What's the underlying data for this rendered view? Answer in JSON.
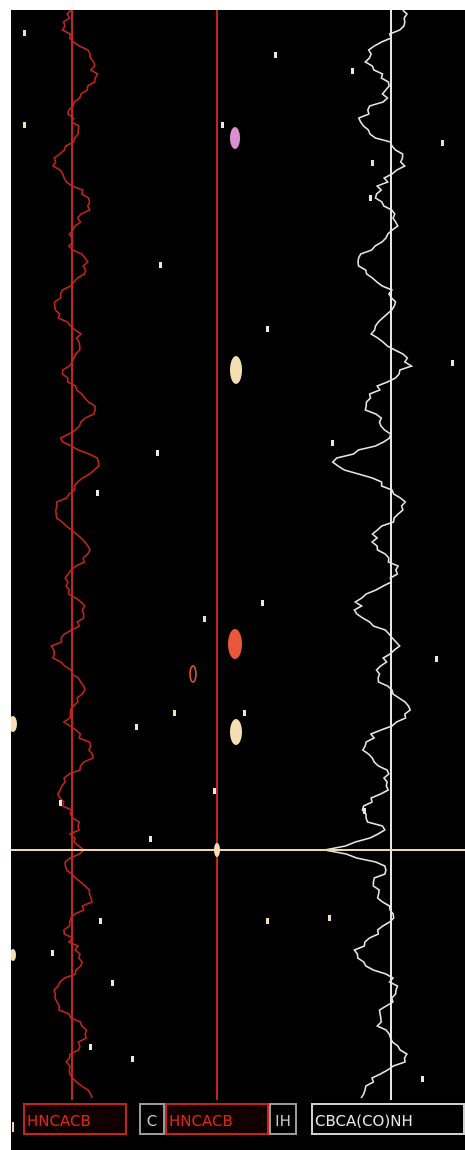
{
  "strips": [
    {
      "label": "HNCACB",
      "color": "#d9291c"
    },
    {
      "label": "C",
      "color": "#c8c8c8"
    },
    {
      "label": "HNCACB",
      "color": "#d9291c"
    },
    {
      "label": "IH",
      "color": "#c8c8c8"
    },
    {
      "label": "CBCA(CO)NH",
      "color": "#e8e8e8"
    }
  ],
  "colors": {
    "background": "#000000",
    "hncacb_trace": "#c0261b",
    "cbcaconh_trace": "#e6e6e6",
    "cursor_line": "#f0d6a8",
    "peak_pink": "#d98fd0",
    "peak_cream": "#f5dfb2",
    "peak_orange": "#e8583a"
  },
  "peaks": [
    {
      "color": "peak_pink",
      "strip": 3,
      "y": 0.12
    },
    {
      "color": "peak_cream",
      "strip": 3,
      "y": 0.33
    },
    {
      "color": "peak_orange",
      "strip": 3,
      "y": 0.58
    },
    {
      "color": "peak_cream",
      "strip": 3,
      "y": 0.66
    }
  ]
}
